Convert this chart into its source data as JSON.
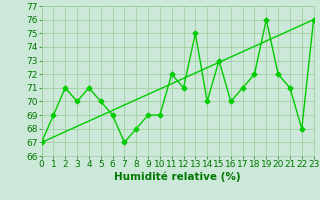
{
  "x": [
    0,
    1,
    2,
    3,
    4,
    5,
    6,
    7,
    8,
    9,
    10,
    11,
    12,
    13,
    14,
    15,
    16,
    17,
    18,
    19,
    20,
    21,
    22,
    23
  ],
  "y": [
    67,
    69,
    71,
    70,
    71,
    70,
    69,
    67,
    68,
    69,
    69,
    72,
    71,
    75,
    70,
    73,
    70,
    71,
    72,
    76,
    72,
    71,
    68,
    76
  ],
  "ylim": [
    66,
    77
  ],
  "xlim": [
    0,
    23
  ],
  "yticks": [
    66,
    67,
    68,
    69,
    70,
    71,
    72,
    73,
    74,
    75,
    76,
    77
  ],
  "xticks": [
    0,
    1,
    2,
    3,
    4,
    5,
    6,
    7,
    8,
    9,
    10,
    11,
    12,
    13,
    14,
    15,
    16,
    17,
    18,
    19,
    20,
    21,
    22,
    23
  ],
  "xlabel": "Humidité relative (%)",
  "line_color": "#00cc00",
  "bg_color": "#cce8d8",
  "grid_color": "#99cc99",
  "tick_color": "#007700",
  "label_color": "#007700",
  "marker": "D",
  "marker_size": 2.5,
  "line_width": 1.0,
  "xlabel_fontsize": 7.5,
  "tick_fontsize": 6.5
}
